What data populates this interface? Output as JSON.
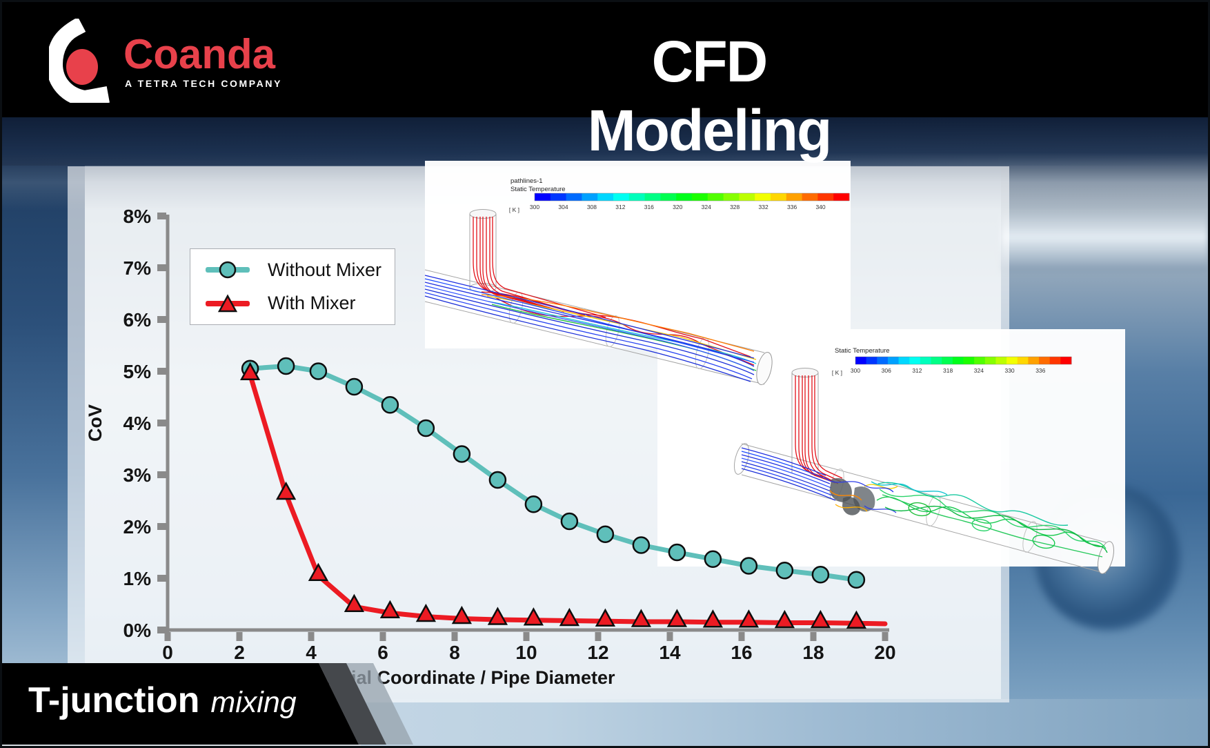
{
  "slide": {
    "header": {
      "brand": "Coanda",
      "brand_tagline": "A TETRA TECH COMPANY",
      "title": "CFD Modeling"
    },
    "footer": {
      "title": "T-junction",
      "subtitle": "mixing"
    }
  },
  "chart_data": {
    "type": "line",
    "title": "",
    "xlabel": "Axial Coordinate / Pipe Diameter",
    "ylabel": "CoV",
    "xlim": [
      0,
      20
    ],
    "ylim_percent": [
      0,
      8
    ],
    "x_ticks": [
      0,
      2,
      4,
      6,
      8,
      10,
      12,
      14,
      16,
      18,
      20
    ],
    "y_tick_labels": [
      "0%",
      "1%",
      "2%",
      "3%",
      "4%",
      "5%",
      "6%",
      "7%",
      "8%"
    ],
    "grid": false,
    "legend_position": "inside top-left",
    "series": [
      {
        "name": "Without Mixer",
        "color": "#5fbfba",
        "marker": "circle",
        "x": [
          2.3,
          3.3,
          4.2,
          5.2,
          6.2,
          7.2,
          8.2,
          9.2,
          10.2,
          11.2,
          12.2,
          13.2,
          14.2,
          15.2,
          16.2,
          17.2,
          18.2,
          19.2
        ],
        "y_percent": [
          5.05,
          5.1,
          5.0,
          4.7,
          4.35,
          3.9,
          3.4,
          2.9,
          2.43,
          2.1,
          1.85,
          1.64,
          1.5,
          1.37,
          1.24,
          1.15,
          1.07,
          0.97
        ]
      },
      {
        "name": "With Mixer",
        "color": "#ec1b23",
        "marker": "triangle",
        "x": [
          2.3,
          3.3,
          4.2,
          5.2,
          6.2,
          7.2,
          8.2,
          9.2,
          10.2,
          11.2,
          12.2,
          13.2,
          14.2,
          15.2,
          16.2,
          17.2,
          18.2,
          19.2
        ],
        "y_percent": [
          4.93,
          2.62,
          1.05,
          0.45,
          0.33,
          0.26,
          0.22,
          0.2,
          0.19,
          0.18,
          0.17,
          0.16,
          0.16,
          0.15,
          0.15,
          0.14,
          0.14,
          0.13
        ],
        "line_tail": {
          "x": 20,
          "y_percent": 0.12
        }
      }
    ]
  },
  "insets": [
    {
      "line1": "pathlines-1",
      "line2": "Static Temperature",
      "units": "[ K ]",
      "colorbar_ticks": [
        300,
        304,
        308,
        312,
        316,
        320,
        324,
        328,
        332,
        336,
        340
      ]
    },
    {
      "line1": "Static Temperature",
      "line2": "",
      "units": "[ K ]",
      "colorbar_ticks": [
        300,
        306,
        312,
        318,
        324,
        330,
        336
      ]
    }
  ],
  "colors": {
    "accent_red": "#e8414b",
    "teal_series": "#5fbfba",
    "red_series": "#ec1b23",
    "axis_gray": "#8a8a8a",
    "header_black": "#000000"
  }
}
